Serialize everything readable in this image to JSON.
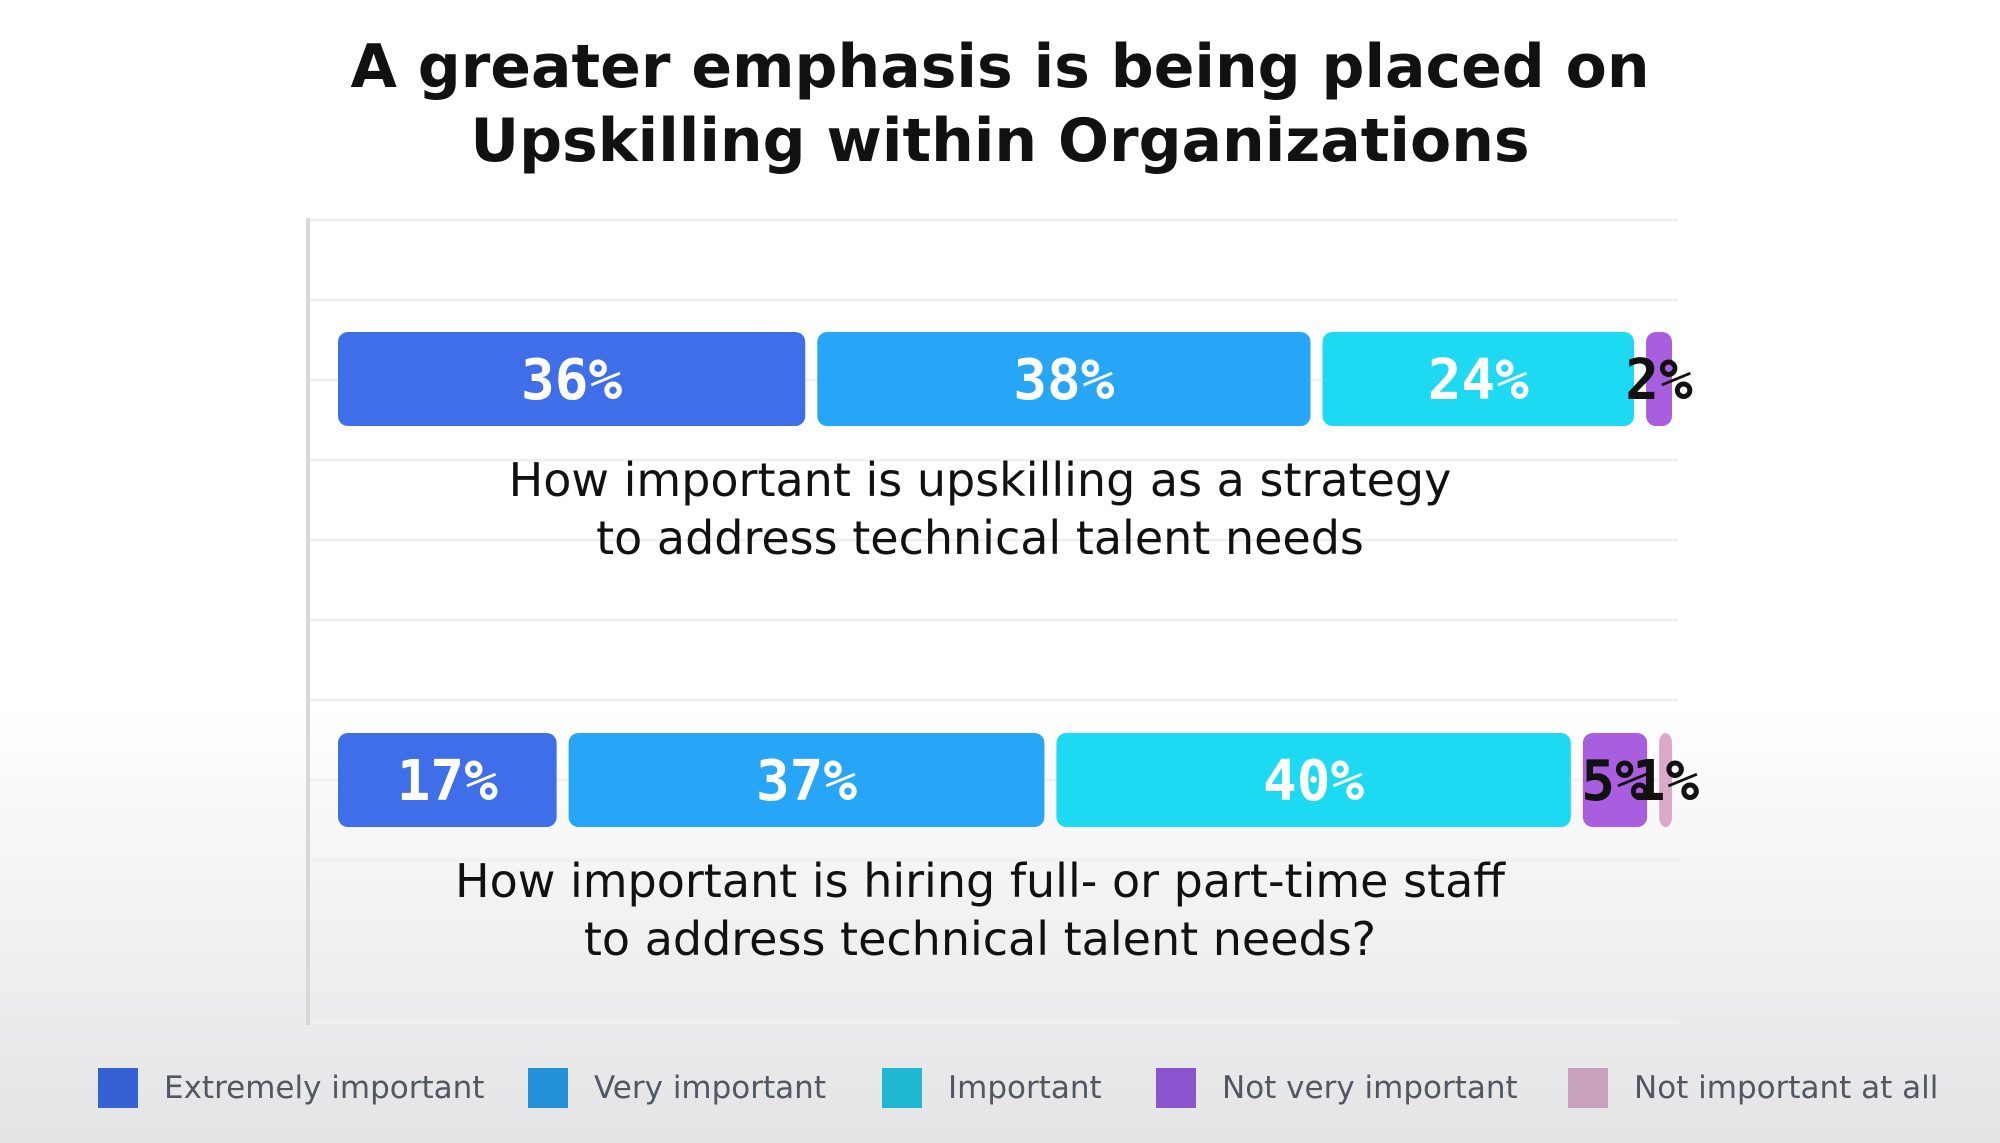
{
  "chart_data": {
    "type": "bar",
    "orientation": "horizontal",
    "stacked": true,
    "title": "A greater emphasis is being placed on Upskilling within Organizations",
    "title_lines": [
      "A greater emphasis is being placed on",
      "Upskilling within Organizations"
    ],
    "categories": [
      "How important is upskilling as a strategy to address technical talent needs",
      "How important is hiring full- or part-time staff to address technical talent needs?"
    ],
    "category_lines": [
      [
        "How important is upskilling as a strategy",
        "to address technical talent needs"
      ],
      [
        "How important is hiring full- or part-time staff",
        "to address technical talent needs?"
      ]
    ],
    "series": [
      {
        "name": "Extremely important",
        "color": "#3f6fe8",
        "values": [
          36,
          17
        ],
        "labels": [
          "36%",
          "17%"
        ]
      },
      {
        "name": "Very important",
        "color": "#27a6f7",
        "values": [
          38,
          37
        ],
        "labels": [
          "38%",
          "37%"
        ]
      },
      {
        "name": "Important",
        "color": "#1ed9f2",
        "values": [
          24,
          40
        ],
        "labels": [
          "24%",
          "40%"
        ]
      },
      {
        "name": "Not very important",
        "color": "#a95ee0",
        "values": [
          2,
          5
        ],
        "labels": [
          "2%",
          "5%"
        ]
      },
      {
        "name": "Not important at all",
        "color": "#dba8c9",
        "values": [
          0,
          1
        ],
        "labels": [
          "",
          "1%"
        ]
      }
    ],
    "legend_colors": [
      "#3461d5",
      "#2490da",
      "#1eb8d2",
      "#8b55cf",
      "#c8a1bc"
    ],
    "xlim": [
      0,
      100
    ],
    "grid": true,
    "legend_position": "bottom"
  }
}
